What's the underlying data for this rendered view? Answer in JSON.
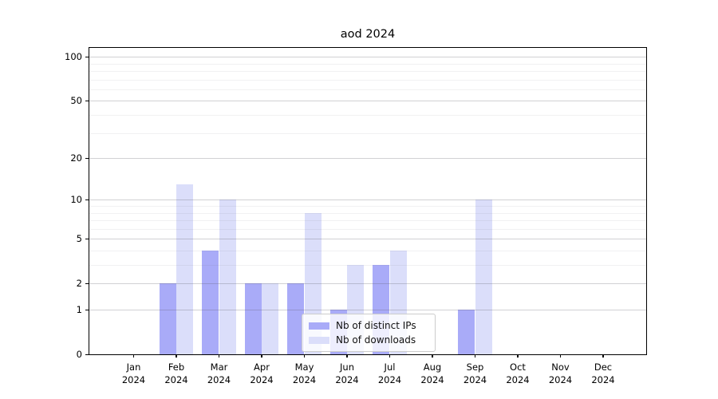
{
  "title": "aod 2024",
  "chart_data": {
    "type": "bar",
    "title": "aod 2024",
    "year_label": "2024",
    "months": [
      "Jan",
      "Feb",
      "Mar",
      "Apr",
      "May",
      "Jun",
      "Jul",
      "Aug",
      "Sep",
      "Oct",
      "Nov",
      "Dec"
    ],
    "categories": [
      "Jan 2024",
      "Feb 2024",
      "Mar 2024",
      "Apr 2024",
      "May 2024",
      "Jun 2024",
      "Jul 2024",
      "Aug 2024",
      "Sep 2024",
      "Oct 2024",
      "Nov 2024",
      "Dec 2024"
    ],
    "series": [
      {
        "name": "Nb of distinct IPs",
        "color": "#a9abf8",
        "values": [
          0,
          2,
          4,
          2,
          2,
          1,
          3,
          0,
          1,
          0,
          0,
          0
        ]
      },
      {
        "name": "Nb of downloads",
        "color": "#dbdefa",
        "values": [
          0,
          13,
          10,
          2,
          8,
          3,
          4,
          0,
          10,
          0,
          0,
          0
        ]
      }
    ],
    "scale": "log1p",
    "ylim": [
      0,
      115
    ],
    "y_ticks": [
      0,
      1,
      2,
      5,
      10,
      20,
      50,
      100
    ],
    "y_minor_ticks": [
      3,
      4,
      6,
      7,
      8,
      9,
      30,
      40,
      60,
      70,
      80,
      90
    ],
    "grid": true,
    "legend_position": "lower-center-inside",
    "xlabel": "",
    "ylabel": ""
  },
  "colors": {
    "background": "#ffffff",
    "axis": "#000000",
    "grid_major": "#d6d6d8",
    "grid_minor": "#ededee",
    "text": "#000000"
  }
}
